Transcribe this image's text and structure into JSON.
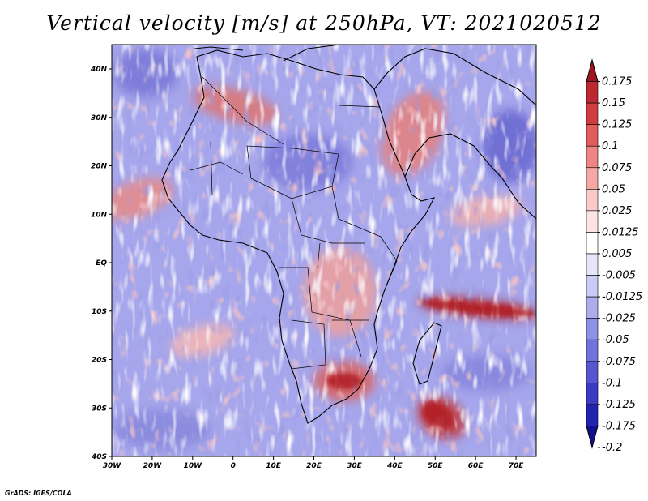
{
  "title": "Vertical velocity [m/s] at 250hPa, VT: 2021020512",
  "credit": "GrADS: IGES/COLA",
  "map": {
    "variable": "Vertical velocity",
    "units": "m/s",
    "level": "250hPa",
    "valid_time": "2021020512",
    "lon_ticks": [
      "30W",
      "20W",
      "10W",
      "0",
      "10E",
      "20E",
      "30E",
      "40E",
      "50E",
      "60E",
      "70E"
    ],
    "lat_ticks": [
      "40N",
      "30N",
      "20N",
      "10N",
      "EQ",
      "10S",
      "20S",
      "30S",
      "40S"
    ]
  },
  "colorbar": {
    "levels": [
      "0.175",
      "0.15",
      "0.125",
      "0.1",
      "0.075",
      "0.05",
      "0.025",
      "0.0125",
      "0.005",
      "-0.005",
      "-0.0125",
      "-0.025",
      "-0.05",
      "-0.075",
      "-0.1",
      "-0.125",
      "-0.175",
      "-0.2"
    ],
    "colors": [
      "#a01620",
      "#bc2830",
      "#d23c40",
      "#e25c5c",
      "#ee8484",
      "#f5a8a6",
      "#f9cac8",
      "#fce4e2",
      "#ffffff",
      "#e6e6fb",
      "#cbcbf5",
      "#adadee",
      "#9090e6",
      "#7272dc",
      "#5656d0",
      "#3a3ac2",
      "#2222b0",
      "#10108e"
    ]
  }
}
